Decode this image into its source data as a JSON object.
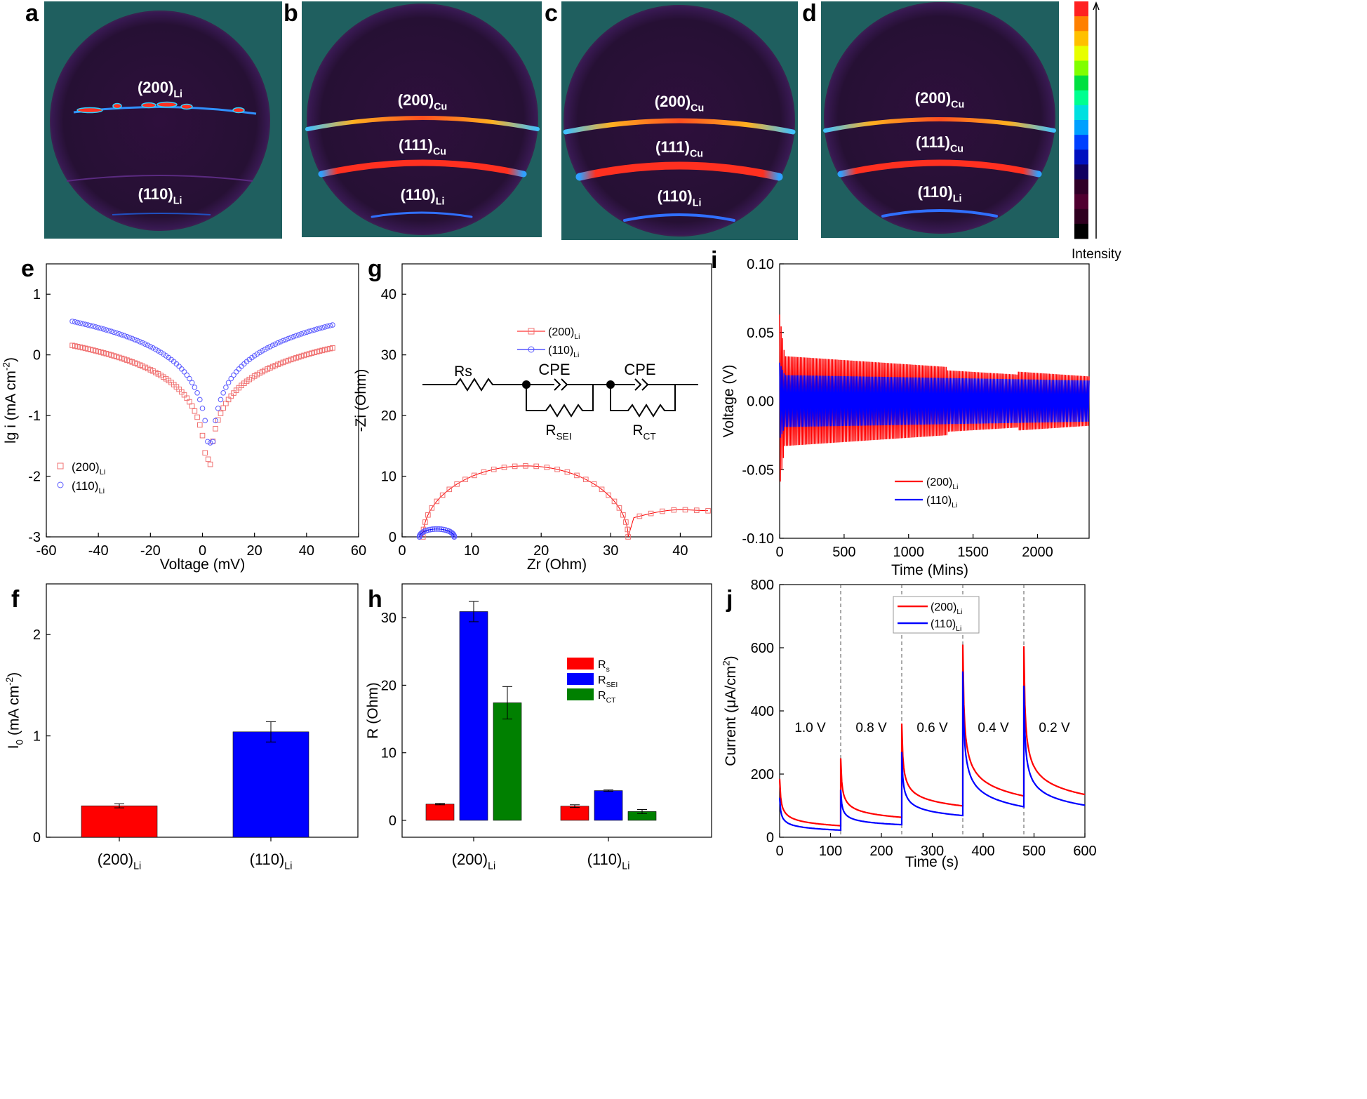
{
  "colors": {
    "red": "#ff0000",
    "blue": "#0000ff",
    "green": "#008000",
    "panelBg": "#1f5f5f",
    "sphere": "#2a0f3a",
    "markerRed": "#f07070",
    "markerBlue": "#5a5aff"
  },
  "panel_letters": [
    "a",
    "b",
    "c",
    "d",
    "e",
    "f",
    "g",
    "h",
    "i",
    "j"
  ],
  "pole_figures": [
    {
      "id": "a",
      "labels": [
        {
          "main": "(200)",
          "sub": "Li"
        },
        {
          "main": "(110)",
          "sub": "Li"
        }
      ]
    },
    {
      "id": "b",
      "labels": [
        {
          "main": "(200)",
          "sub": "Cu"
        },
        {
          "main": "(111)",
          "sub": "Cu"
        },
        {
          "main": "(110)",
          "sub": "Li"
        }
      ]
    },
    {
      "id": "c",
      "labels": [
        {
          "main": "(200)",
          "sub": "Cu"
        },
        {
          "main": "(111)",
          "sub": "Cu"
        },
        {
          "main": "(110)",
          "sub": "Li"
        }
      ]
    },
    {
      "id": "d",
      "labels": [
        {
          "main": "(200)",
          "sub": "Cu"
        },
        {
          "main": "(111)",
          "sub": "Cu"
        },
        {
          "main": "(110)",
          "sub": "Li"
        }
      ]
    }
  ],
  "colorbar": {
    "label": "Intensity",
    "colors": [
      "#ff2020",
      "#ff8000",
      "#ffc000",
      "#e8ff00",
      "#80ff00",
      "#00e040",
      "#00ff90",
      "#00e0e0",
      "#00a0ff",
      "#0040ff",
      "#0010c0",
      "#100060",
      "#300028",
      "#500030",
      "#300020",
      "#000000"
    ]
  },
  "chart_data": [
    {
      "panel": "e",
      "type": "scatter",
      "xlabel": "Voltage (mV)",
      "ylabel_main": "lg i (mA cm",
      "ylabel_sup": "-2",
      "ylabel_end": ")",
      "xlim": [
        -60,
        60
      ],
      "ylim": [
        -3,
        1.5
      ],
      "xticks": [
        -60,
        -40,
        -20,
        0,
        20,
        40,
        60
      ],
      "yticks": [
        -3,
        -2,
        -1,
        0,
        1
      ],
      "series": [
        {
          "name_main": "(200)",
          "name_sub": "Li",
          "marker": "square",
          "x0": 2.2,
          "y0": -1.72,
          "kneg": 0.38,
          "kpos": 0.37
        },
        {
          "name_main": "(110)",
          "name_sub": "Li",
          "marker": "circle",
          "x0": 3.0,
          "y0": -1.45,
          "kneg": 0.41,
          "kpos": 0.41
        }
      ]
    },
    {
      "panel": "f",
      "type": "bar",
      "ylabel_main": "I",
      "ylabel_sub": "0",
      "ylabel_mid": " (mA cm",
      "ylabel_sup": "-2",
      "ylabel_end": ")",
      "ylim": [
        0,
        2.5
      ],
      "yticks": [
        0,
        1,
        2
      ],
      "categories": [
        {
          "main": "(200)",
          "sub": "Li"
        },
        {
          "main": "(110)",
          "sub": "Li"
        }
      ],
      "values": [
        0.31,
        1.04
      ],
      "errors": [
        0.02,
        0.1
      ]
    },
    {
      "panel": "g",
      "type": "scatter",
      "xlabel": "Zr (Ohm)",
      "ylabel": "-Zi (Ohm)",
      "xlim": [
        0,
        44.5
      ],
      "ylim": [
        0,
        45
      ],
      "xticks": [
        0,
        10,
        20,
        30,
        40
      ],
      "yticks": [
        0,
        10,
        20,
        30,
        40
      ],
      "series": [
        {
          "name_main": "(200)",
          "name_sub": "Li",
          "marker": "square",
          "arc_x0": 3.0,
          "arc_x1": 32.5,
          "arc_peak": 11.7,
          "tail_x1": 44.0
        },
        {
          "name_main": "(110)",
          "name_sub": "Li",
          "marker": "circle",
          "arc_x0": 2.5,
          "arc_x1": 7.5,
          "arc_peak": 1.3
        }
      ],
      "circuit": {
        "rs": "Rs",
        "cpe": "CPE",
        "rsei_main": "R",
        "rsei_sub": "SEI",
        "rct_main": "R",
        "rct_sub": "CT"
      }
    },
    {
      "panel": "h",
      "type": "bar",
      "ylabel": "R (Ohm)",
      "ylim": [
        -2.5,
        35
      ],
      "yticks": [
        0,
        10,
        20,
        30
      ],
      "categories": [
        {
          "main": "(200)",
          "sub": "Li"
        },
        {
          "main": "(110)",
          "sub": "Li"
        }
      ],
      "series": [
        {
          "name_main": "R",
          "name_sub": "s",
          "values": [
            2.4,
            2.1
          ],
          "errors": [
            0.1,
            0.2
          ]
        },
        {
          "name_main": "R",
          "name_sub": "SEI",
          "values": [
            30.9,
            4.4
          ],
          "errors": [
            1.5,
            0.1
          ]
        },
        {
          "name_main": "R",
          "name_sub": "CT",
          "values": [
            17.4,
            1.3
          ],
          "errors": [
            2.4,
            0.3
          ]
        }
      ]
    },
    {
      "panel": "i",
      "type": "line",
      "xlabel": "Time (Mins)",
      "ylabel": "Voltage (V)",
      "xlim": [
        0,
        2400
      ],
      "ylim": [
        -0.1,
        0.1
      ],
      "xticks": [
        0,
        500,
        1000,
        1500,
        2000
      ],
      "yticks": [
        -0.1,
        -0.05,
        0,
        0.05,
        0.1
      ],
      "ytick_labels": [
        "-0.10",
        "-0.05",
        "0.00",
        "0.05",
        "0.10"
      ],
      "series": [
        {
          "name_main": "(200)",
          "name_sub": "Li",
          "amp_start": 0.033,
          "amp_end": 0.018,
          "spike": 0.063
        },
        {
          "name_main": "(110)",
          "name_sub": "Li",
          "amp_start": 0.019,
          "amp_end": 0.015,
          "spike": 0.028
        }
      ]
    },
    {
      "panel": "j",
      "type": "line",
      "xlabel": "Time (s)",
      "ylabel_main": "Current (μA/cm",
      "ylabel_sup": "2",
      "ylabel_end": ")",
      "xlim": [
        0,
        600
      ],
      "ylim": [
        0,
        800
      ],
      "xticks": [
        0,
        100,
        200,
        300,
        400,
        500,
        600
      ],
      "yticks": [
        0,
        200,
        400,
        600,
        800
      ],
      "segment_labels": [
        "1.0 V",
        "0.8 V",
        "0.6 V",
        "0.4 V",
        "0.2 V"
      ],
      "segment_bounds": [
        0,
        120,
        240,
        360,
        480,
        600
      ],
      "series": [
        {
          "name_main": "(200)",
          "name_sub": "Li",
          "peaks": [
            185,
            250,
            360,
            610,
            605
          ],
          "ends": [
            30,
            55,
            88,
            110,
            115
          ]
        },
        {
          "name_main": "(110)",
          "name_sub": "Li",
          "peaks": [
            125,
            150,
            270,
            525,
            480
          ],
          "ends": [
            18,
            35,
            60,
            78,
            85
          ]
        }
      ]
    }
  ]
}
